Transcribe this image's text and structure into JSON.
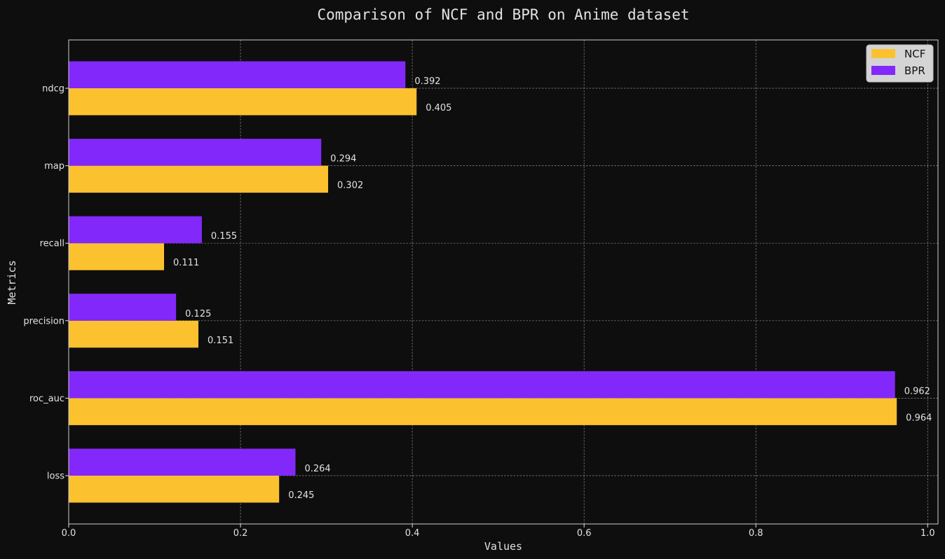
{
  "chart_data": {
    "type": "bar",
    "orientation": "horizontal",
    "title": "Comparison of NCF and BPR on Anime dataset",
    "xlabel": "Values",
    "ylabel": "Metrics",
    "categories": [
      "loss",
      "roc_auc",
      "precision",
      "recall",
      "map",
      "ndcg"
    ],
    "series": [
      {
        "name": "NCF",
        "color": "#fcc12e",
        "values": [
          0.245,
          0.964,
          0.151,
          0.111,
          0.302,
          0.405
        ],
        "labels": [
          "0.245",
          "0.964",
          "0.151",
          "0.111",
          "0.302",
          "0.405"
        ]
      },
      {
        "name": "BPR",
        "color": "#8328fa",
        "values": [
          0.264,
          0.962,
          0.125,
          0.155,
          0.294,
          0.392
        ],
        "labels": [
          "0.264",
          "0.962",
          "0.125",
          "0.155",
          "0.294",
          "0.392"
        ]
      }
    ],
    "xlim": [
      0,
      1.012
    ],
    "xticks": [
      0.0,
      0.2,
      0.4,
      0.6,
      0.8,
      1.0
    ],
    "xtick_labels": [
      "0.0",
      "0.2",
      "0.4",
      "0.6",
      "0.8",
      "1.0"
    ],
    "grid": true,
    "legend_position": "top-right",
    "background_color": "#0e0e0e",
    "text_color": "#e2e2e2",
    "grid_color": "#bbbbbb"
  }
}
